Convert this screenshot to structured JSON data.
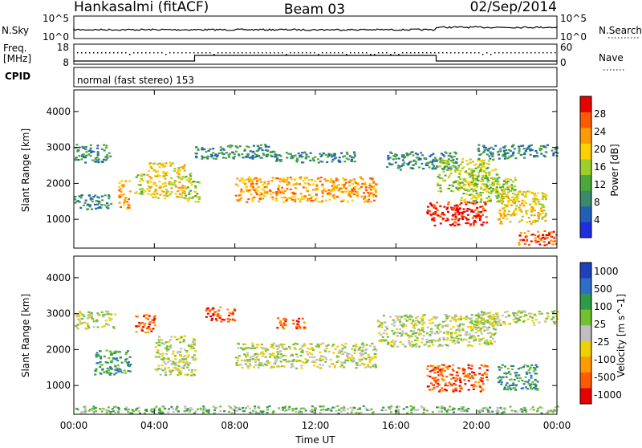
{
  "header": {
    "station": "Hankasalmi (fitACF)",
    "beam": "Beam 03",
    "date": "02/Sep/2014"
  },
  "noise_panel": {
    "left_label": "N.Sky",
    "left_ticks": [
      "10^5",
      "10^0"
    ],
    "right_label": "N.Search",
    "right_ticks": [
      "10^5",
      "10^0"
    ]
  },
  "freq_panel": {
    "left_label_1": "Freq.",
    "left_label_2": "[MHz]",
    "left_ticks": [
      "18",
      "8"
    ],
    "right_label": "Nave",
    "right_ticks": [
      "60",
      "0"
    ]
  },
  "cpid_panel": {
    "label": "CPID",
    "text": "normal (fast stereo) 153"
  },
  "colors": {
    "power_scale": [
      "#1e2ee0",
      "#2060b8",
      "#3a8a6a",
      "#4aa838",
      "#9bd02c",
      "#ffd000",
      "#ff9a00",
      "#ff5a00",
      "#e80000"
    ],
    "velocity_scale": [
      "#1e40b8",
      "#2e6ec8",
      "#2e9a4a",
      "#70c030",
      "#bfbfbf",
      "#f0d000",
      "#ff9a00",
      "#ff5a00",
      "#e80000"
    ],
    "ground_scatter": "#bfbfbf"
  },
  "chart_data": [
    {
      "type": "heatmap",
      "name": "Power",
      "ylabel": "Slant Range [km]",
      "yticks": [
        "1000",
        "2000",
        "3000",
        "4000"
      ],
      "ylim": [
        200,
        4600
      ],
      "xlim": [
        0,
        24
      ],
      "colorbar_label": "Power [dB]",
      "colorbar_ticks": [
        "4",
        "8",
        "12",
        "16",
        "20",
        "24",
        "28"
      ],
      "colorbar_range": [
        0,
        32
      ],
      "scatter_bands": [
        {
          "x": [
            0.0,
            1.8
          ],
          "y": [
            2600,
            3100
          ],
          "level": 2
        },
        {
          "x": [
            0.0,
            1.8
          ],
          "y": [
            1300,
            1700
          ],
          "level": 2
        },
        {
          "x": [
            2.2,
            2.8
          ],
          "y": [
            1300,
            2100
          ],
          "level": 6
        },
        {
          "x": [
            3.0,
            3.5
          ],
          "y": [
            1700,
            2300
          ],
          "level": 4
        },
        {
          "x": [
            3.6,
            5.5
          ],
          "y": [
            1600,
            2600
          ],
          "level": 5
        },
        {
          "x": [
            5.5,
            6.2
          ],
          "y": [
            1500,
            2300
          ],
          "level": 4
        },
        {
          "x": [
            6.0,
            10.0
          ],
          "y": [
            2700,
            3100
          ],
          "level": 2
        },
        {
          "x": [
            8.0,
            15.0
          ],
          "y": [
            1500,
            2200
          ],
          "level": 6
        },
        {
          "x": [
            10.0,
            14.0
          ],
          "y": [
            2600,
            2900
          ],
          "level": 2
        },
        {
          "x": [
            15.5,
            19.0
          ],
          "y": [
            2400,
            2900
          ],
          "level": 2
        },
        {
          "x": [
            18.0,
            21.0
          ],
          "y": [
            1800,
            2700
          ],
          "level": 4
        },
        {
          "x": [
            17.5,
            20.5
          ],
          "y": [
            850,
            1500
          ],
          "level": 8
        },
        {
          "x": [
            19.0,
            22.0
          ],
          "y": [
            1500,
            2200
          ],
          "level": 4
        },
        {
          "x": [
            21.0,
            23.5
          ],
          "y": [
            900,
            1800
          ],
          "level": 5
        },
        {
          "x": [
            20.0,
            24.0
          ],
          "y": [
            2700,
            3100
          ],
          "level": 2
        },
        {
          "x": [
            22.0,
            24.0
          ],
          "y": [
            300,
            700
          ],
          "level": 7
        }
      ]
    },
    {
      "type": "heatmap",
      "name": "Velocity",
      "ylabel": "Slant Range [km]",
      "yticks": [
        "1000",
        "2000",
        "3000",
        "4000"
      ],
      "ylim": [
        200,
        4600
      ],
      "xlim": [
        0,
        24
      ],
      "xlabel": "Time UT",
      "xticks": [
        "00:00",
        "04:00",
        "08:00",
        "12:00",
        "16:00",
        "20:00",
        "00:00"
      ],
      "colorbar_label": "Velocity [m s^-1]",
      "colorbar_ticks": [
        "1000",
        "500",
        "100",
        "25",
        "-25",
        "-100",
        "-500",
        "-1000"
      ],
      "scatter_bands": [
        {
          "x": [
            0.0,
            2.0
          ],
          "y": [
            2600,
            3100
          ],
          "level": 4
        },
        {
          "x": [
            1.0,
            2.8
          ],
          "y": [
            1300,
            2000
          ],
          "level": 2
        },
        {
          "x": [
            3.0,
            4.0
          ],
          "y": [
            2500,
            3000
          ],
          "level": 7
        },
        {
          "x": [
            4.0,
            6.0
          ],
          "y": [
            1300,
            2400
          ],
          "level": 4
        },
        {
          "x": [
            6.5,
            8.0
          ],
          "y": [
            2800,
            3200
          ],
          "level": 7
        },
        {
          "x": [
            8.0,
            15.0
          ],
          "y": [
            1500,
            2200
          ],
          "level": 4
        },
        {
          "x": [
            10.0,
            11.5
          ],
          "y": [
            2600,
            2900
          ],
          "level": 7
        },
        {
          "x": [
            15.0,
            21.0
          ],
          "y": [
            2100,
            3000
          ],
          "level": 4
        },
        {
          "x": [
            17.5,
            20.5
          ],
          "y": [
            850,
            1600
          ],
          "level": 7
        },
        {
          "x": [
            20.0,
            24.0
          ],
          "y": [
            2700,
            3100
          ],
          "level": 4
        },
        {
          "x": [
            21.0,
            23.0
          ],
          "y": [
            900,
            1600
          ],
          "level": 2
        },
        {
          "x": [
            0.0,
            24.0
          ],
          "y": [
            250,
            450
          ],
          "level": 3
        }
      ]
    }
  ]
}
